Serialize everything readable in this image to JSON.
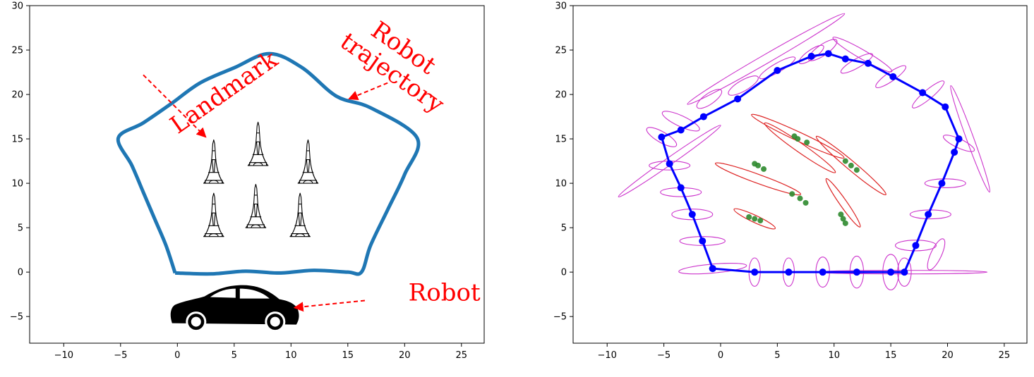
{
  "chart_data": [
    {
      "type": "line",
      "xlim": [
        -13,
        27
      ],
      "ylim": [
        -8,
        30
      ],
      "xticks": [
        -10,
        -5,
        0,
        5,
        10,
        15,
        20,
        25
      ],
      "yticks": [
        -5,
        0,
        5,
        10,
        15,
        20,
        25,
        30
      ],
      "grid": false,
      "series": [
        {
          "color": "#1f77b4",
          "x": [
            -0.2,
            3,
            6,
            9,
            12,
            15,
            16.2,
            17,
            18.5,
            20,
            21.1,
            17,
            14,
            11,
            8.1,
            5,
            2,
            -0.5,
            -3,
            -5.2,
            -4,
            -3,
            -2,
            -1,
            -0.2
          ],
          "y": [
            -0.1,
            -0.2,
            0.1,
            -0.1,
            0.2,
            0,
            0,
            3,
            7,
            11,
            15.1,
            18.5,
            19.8,
            23,
            24.6,
            23,
            21.3,
            19,
            16.8,
            15.1,
            12,
            9,
            6,
            3,
            -0.1
          ]
        }
      ],
      "landmarks": {
        "icon": "eiffel-tower-icon",
        "x": [
          3.2,
          7.1,
          11.5,
          3.2,
          6.9,
          10.8
        ],
        "y": [
          13.5,
          15.5,
          13.5,
          7.5,
          8.5,
          7.5
        ]
      },
      "robot": {
        "icon": "car-icon",
        "x": 5,
        "y": -4
      },
      "annotations": [
        {
          "text": "Landmark",
          "x": 4.5,
          "y": 19.5,
          "rotate": -35,
          "arrow_from": [
            -3,
            22.2
          ],
          "arrow_to": [
            2.5,
            15.2
          ]
        },
        {
          "text": "Robot",
          "x": 19.5,
          "y": 24.5,
          "rotate": 35,
          "arrow_from": [
            18.5,
            21.3
          ],
          "arrow_to": [
            15.1,
            19.5
          ]
        },
        {
          "text": "trajectory",
          "x": 18.5,
          "y": 21.7,
          "rotate": 35
        },
        {
          "text": "Robot",
          "x": 23.5,
          "y": -3.2,
          "rotate": 0,
          "arrow_from": [
            16.5,
            -3.2
          ],
          "arrow_to": [
            10.3,
            -4
          ]
        }
      ]
    },
    {
      "type": "scatter",
      "xlim": [
        -13,
        27
      ],
      "ylim": [
        -8,
        30
      ],
      "xticks": [
        -10,
        -5,
        0,
        5,
        10,
        15,
        20,
        25
      ],
      "yticks": [
        -5,
        0,
        5,
        10,
        15,
        20,
        25,
        30
      ],
      "grid": false,
      "colors": {
        "trajectory": "#0000ff",
        "pose_cov": "#cc33cc",
        "landmark_cov": "#dd2222",
        "landmark": "#2d8a2d"
      },
      "trajectory": {
        "x": [
          -0.7,
          3,
          6,
          9,
          12,
          15,
          16.2,
          17.2,
          18.3,
          19.5,
          20.6,
          21,
          19.8,
          17.8,
          15.2,
          13,
          11,
          9.5,
          8,
          5,
          1.5,
          -1.5,
          -3.5,
          -5.2,
          -4.5,
          -3.5,
          -2.5,
          -1.6,
          -0.7
        ],
        "y": [
          0.4,
          0,
          0,
          0,
          0,
          0,
          0,
          3,
          6.5,
          10,
          13.5,
          15,
          18.6,
          20.2,
          22,
          23.5,
          24,
          24.6,
          24.3,
          22.7,
          19.5,
          17.5,
          16,
          15.2,
          12.2,
          9.5,
          6.5,
          3.5,
          0.4
        ]
      },
      "pose_cov": {
        "x": [
          3,
          6,
          9,
          12,
          15,
          16.2,
          17.2,
          18.5,
          19.8,
          21,
          18.3,
          15,
          12,
          9,
          8,
          5,
          2,
          -1,
          -3.5,
          -5.2,
          -4.5,
          -3.5,
          -2.5,
          -1.6,
          -0.7,
          4,
          12.5,
          22,
          -4.5,
          19,
          16
        ],
        "y": [
          0,
          0,
          0,
          0,
          0,
          0,
          3,
          6.5,
          10,
          14.5,
          20,
          22,
          23.5,
          25,
          24.5,
          23,
          21,
          19.5,
          17,
          15.2,
          12,
          9,
          6.5,
          3.5,
          0.4,
          24,
          24.5,
          15,
          12.5,
          2,
          0
        ],
        "rx": [
          0.5,
          0.5,
          0.6,
          0.6,
          0.7,
          0.6,
          1.8,
          1.8,
          1.8,
          1.5,
          1.8,
          1.6,
          1.6,
          1.5,
          1.3,
          1.8,
          1.5,
          1.3,
          1.8,
          1.5,
          1.8,
          1.8,
          1.8,
          2,
          3,
          8,
          3,
          5,
          5.5,
          1.5,
          7.5
        ],
        "ry": [
          1.6,
          1.6,
          1.7,
          1.8,
          2,
          1.6,
          0.6,
          0.5,
          0.5,
          0.5,
          0.5,
          0.5,
          0.5,
          0.6,
          0.5,
          0.5,
          0.6,
          0.6,
          0.6,
          0.6,
          0.5,
          0.5,
          0.6,
          0.5,
          0.5,
          0.5,
          0.5,
          0.4,
          0.4,
          0.6,
          0.2
        ],
        "angle": [
          0,
          0,
          0,
          0,
          0,
          0,
          0,
          0,
          0,
          -25,
          40,
          35,
          30,
          35,
          35,
          30,
          30,
          35,
          -25,
          -30,
          0,
          0,
          0,
          0,
          5,
          30,
          -30,
          -70,
          35,
          65,
          0
        ]
      },
      "landmark_cov": {
        "x": [
          3,
          7,
          11.5,
          3.3,
          6.8,
          10.8
        ],
        "y": [
          6,
          14,
          12,
          10.5,
          15.3,
          7.8
        ],
        "rx": [
          2,
          3.8,
          4,
          4,
          4.5,
          2.6
        ],
        "ry": [
          0.4,
          0.5,
          0.5,
          0.5,
          0.5,
          0.4
        ],
        "angle": [
          -25,
          -35,
          -40,
          -20,
          -25,
          -55
        ]
      },
      "landmarks": {
        "x": [
          3,
          7,
          11.5,
          3.3,
          6.8,
          10.8,
          2.5,
          3.5,
          6.3,
          7.5,
          11,
          12,
          3,
          3.8,
          6.5,
          7.6,
          10.6,
          11
        ],
        "y": [
          6,
          8.3,
          12,
          12,
          15,
          6,
          6.2,
          5.8,
          8.8,
          7.8,
          12.5,
          11.5,
          12.2,
          11.6,
          15.3,
          14.6,
          6.5,
          5.5
        ]
      }
    }
  ]
}
